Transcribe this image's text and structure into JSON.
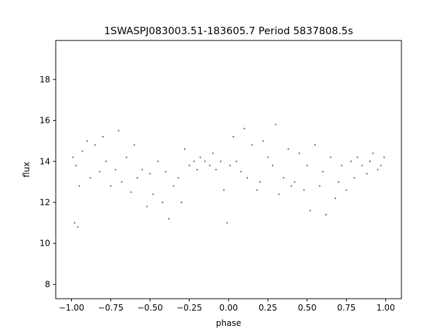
{
  "chart_data": {
    "type": "scatter",
    "title": "1SWASPJ083003.51-183605.7 Period 5837808.5s",
    "xlabel": "phase",
    "ylabel": "flux",
    "xlim": [
      -1.1,
      1.1
    ],
    "ylim": [
      7.3,
      19.9
    ],
    "xticks": [
      -1.0,
      -0.75,
      -0.5,
      -0.25,
      0.0,
      0.25,
      0.5,
      0.75,
      1.0
    ],
    "xtick_labels": [
      "−1.00",
      "−0.75",
      "−0.50",
      "−0.25",
      "0.00",
      "0.25",
      "0.50",
      "0.75",
      "1.00"
    ],
    "yticks": [
      8,
      10,
      12,
      14,
      16,
      18
    ],
    "ytick_labels": [
      "8",
      "10",
      "12",
      "14",
      "16",
      "18"
    ],
    "grid": false,
    "marker_color": "#1f77b4",
    "series": [
      {
        "points_description_note": "",
        "x": [
          -0.99,
          -0.98,
          -0.97,
          -0.96,
          -0.95,
          -0.93,
          -0.9,
          -0.88,
          -0.85,
          -0.82,
          -0.8,
          -0.78,
          -0.75,
          -0.72,
          -0.7,
          -0.68,
          -0.65,
          -0.62,
          -0.6,
          -0.58,
          -0.55,
          -0.52,
          -0.5,
          -0.48,
          -0.45,
          -0.42,
          -0.4,
          -0.38,
          -0.35,
          -0.32,
          -0.3,
          -0.28,
          -0.25,
          -0.22,
          -0.2,
          -0.18,
          -0.15,
          -0.12,
          -0.1,
          -0.08,
          -0.05,
          -0.03,
          -0.01,
          0.01,
          0.03,
          0.05,
          0.08,
          0.1,
          0.12,
          0.15,
          0.18,
          0.2,
          0.22,
          0.25,
          0.28,
          0.3,
          0.32,
          0.35,
          0.38,
          0.4,
          0.42,
          0.45,
          0.48,
          0.5,
          0.52,
          0.55,
          0.58,
          0.6,
          0.62,
          0.65,
          0.68,
          0.7,
          0.72,
          0.75,
          0.78,
          0.8,
          0.82,
          0.85,
          0.88,
          0.9,
          0.92,
          0.95,
          0.97,
          0.99
        ],
        "y": [
          14.2,
          11.0,
          13.8,
          10.8,
          12.8,
          14.5,
          15.0,
          13.2,
          14.8,
          13.5,
          15.2,
          14.0,
          12.8,
          13.6,
          15.5,
          13.0,
          14.2,
          12.5,
          14.8,
          13.2,
          13.6,
          11.8,
          13.4,
          12.4,
          14.0,
          12.0,
          13.5,
          11.2,
          12.8,
          13.2,
          12.0,
          14.6,
          13.8,
          14.0,
          13.6,
          14.2,
          14.0,
          13.8,
          14.4,
          13.6,
          14.0,
          12.6,
          11.0,
          13.8,
          15.2,
          14.0,
          13.5,
          15.6,
          13.2,
          14.8,
          12.6,
          13.0,
          15.0,
          14.2,
          13.8,
          15.8,
          12.4,
          13.2,
          14.6,
          12.8,
          13.0,
          14.4,
          12.6,
          13.8,
          11.6,
          14.8,
          12.8,
          13.5,
          11.4,
          14.2,
          12.2,
          13.0,
          13.8,
          12.6,
          14.0,
          13.2,
          14.2,
          13.8,
          13.4,
          14.0,
          14.4,
          13.6,
          13.8,
          14.2
        ]
      }
    ]
  }
}
